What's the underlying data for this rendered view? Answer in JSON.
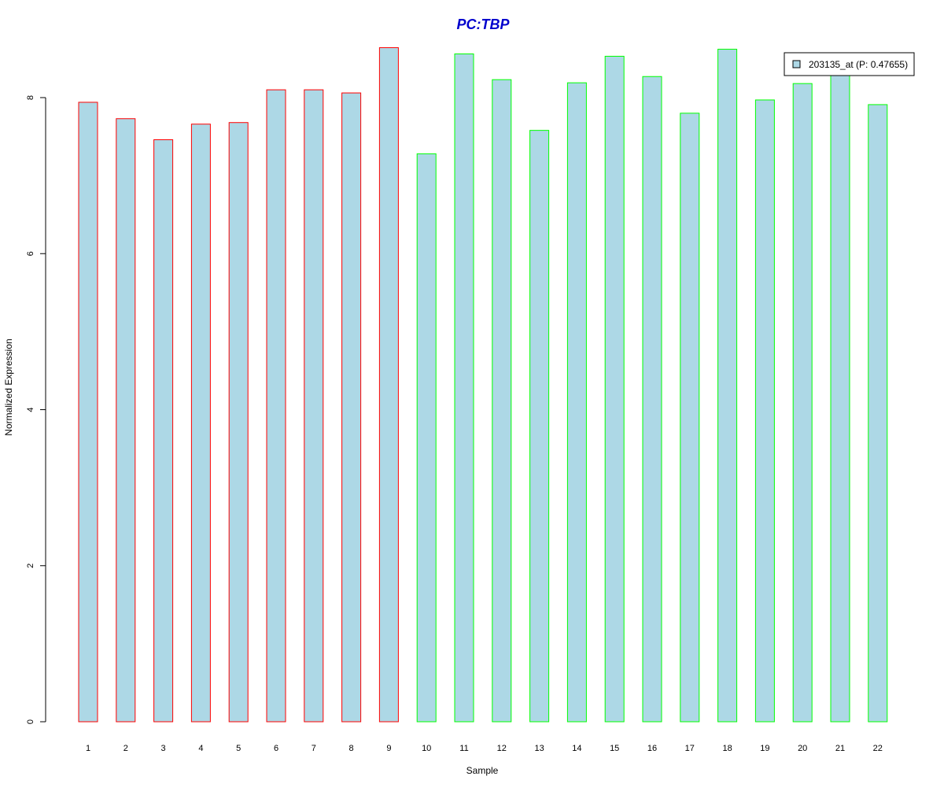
{
  "chart_data": {
    "type": "bar",
    "title": "PC:TBP",
    "xlabel": "Sample",
    "ylabel": "Normalized Expression",
    "ylim": [
      0,
      8.7
    ],
    "yticks": [
      0,
      2,
      4,
      6,
      8
    ],
    "ytick_labels": [
      "0",
      "2",
      "4",
      "6",
      "8"
    ],
    "categories": [
      "1",
      "2",
      "3",
      "4",
      "5",
      "6",
      "7",
      "8",
      "9",
      "10",
      "11",
      "12",
      "13",
      "14",
      "15",
      "16",
      "17",
      "18",
      "19",
      "20",
      "21",
      "22"
    ],
    "series": [
      {
        "name": "203135_at (P: 0.47655)",
        "values": [
          7.94,
          7.73,
          7.46,
          7.66,
          7.68,
          8.1,
          8.1,
          8.06,
          8.64,
          7.28,
          8.56,
          8.23,
          7.58,
          8.19,
          8.53,
          8.27,
          7.8,
          8.62,
          7.97,
          8.18,
          8.34,
          7.91
        ]
      }
    ],
    "bar_fill": "#add8e6",
    "group_outline_colors": [
      "#ff0000",
      "#ff0000",
      "#ff0000",
      "#ff0000",
      "#ff0000",
      "#ff0000",
      "#ff0000",
      "#ff0000",
      "#ff0000",
      "#00ff00",
      "#00ff00",
      "#00ff00",
      "#00ff00",
      "#00ff00",
      "#00ff00",
      "#00ff00",
      "#00ff00",
      "#00ff00",
      "#00ff00",
      "#00ff00",
      "#00ff00",
      "#00ff00"
    ],
    "title_color": "#0000cd",
    "legend_placement": "top-right",
    "grid": false
  }
}
